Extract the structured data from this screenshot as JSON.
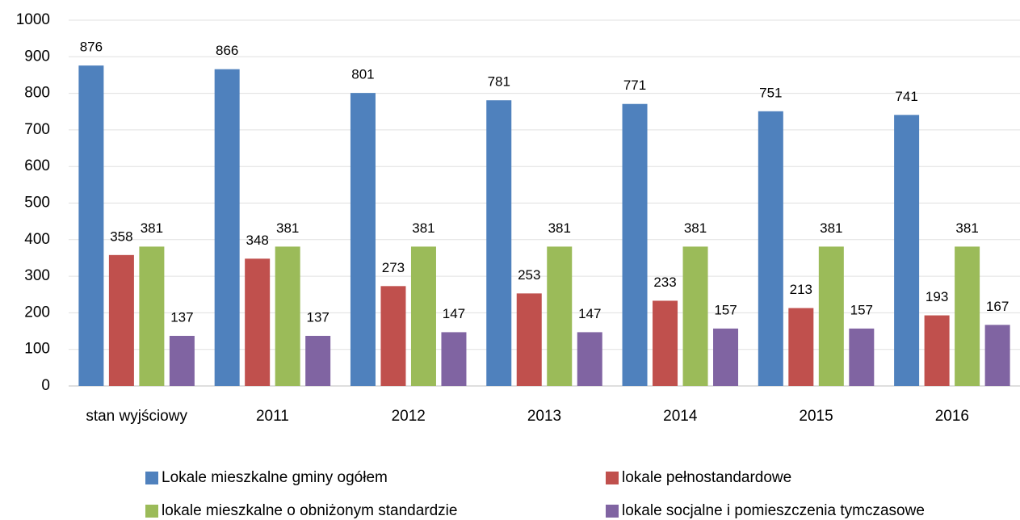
{
  "chart_data": {
    "type": "bar",
    "categories": [
      "stan wyjściowy",
      "2011",
      "2012",
      "2013",
      "2014",
      "2015",
      "2016"
    ],
    "series": [
      {
        "name": "Lokale mieszkalne gminy ogółem",
        "color": "#4f81bd",
        "values": [
          876,
          866,
          801,
          781,
          771,
          751,
          741
        ]
      },
      {
        "name": "lokale pełnostandardowe",
        "color": "#c0504d",
        "values": [
          358,
          348,
          273,
          253,
          233,
          213,
          193
        ]
      },
      {
        "name": "lokale mieszkalne o obniżonym standardzie",
        "color": "#9bbb59",
        "values": [
          381,
          381,
          381,
          381,
          381,
          381,
          381
        ]
      },
      {
        "name": "lokale socjalne i pomieszczenia tymczasowe",
        "color": "#8064a2",
        "values": [
          137,
          137,
          147,
          147,
          157,
          157,
          167
        ]
      }
    ],
    "ylim": [
      0,
      1000
    ],
    "yticks": [
      0,
      100,
      200,
      300,
      400,
      500,
      600,
      700,
      800,
      900,
      1000
    ],
    "grid": true,
    "legend": "bottom"
  }
}
